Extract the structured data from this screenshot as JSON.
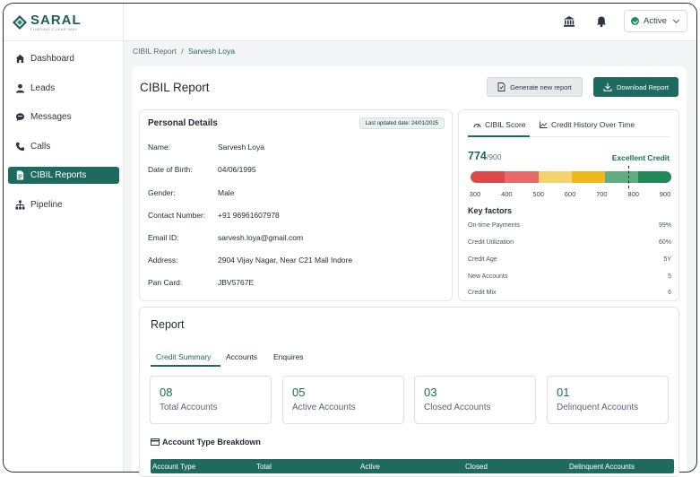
{
  "brand": {
    "name": "SARAL",
    "tagline": "FUNDING CLEAR WAY"
  },
  "sidebar": {
    "items": [
      {
        "label": "Dashboard",
        "icon": "home-icon"
      },
      {
        "label": "Leads",
        "icon": "user-icon"
      },
      {
        "label": "Messages",
        "icon": "chat-icon"
      },
      {
        "label": "Calls",
        "icon": "phone-icon"
      },
      {
        "label": "CIBIL Reports",
        "icon": "document-icon",
        "active": true
      },
      {
        "label": "Pipeline",
        "icon": "hierarchy-icon"
      }
    ]
  },
  "topbar": {
    "status": "Active"
  },
  "breadcrumb": {
    "root": "CIBIL Report",
    "separator": "/",
    "current": "Sarvesh Loya"
  },
  "page": {
    "title": "CIBIL Report",
    "generate_label": "Generate new report",
    "download_label": "Download Report"
  },
  "personal": {
    "title": "Personal Details",
    "updated": "Last updated date: 24/01/2025",
    "fields": [
      {
        "label": "Name:",
        "value": "Sarvesh Loya"
      },
      {
        "label": "Date of Birth:",
        "value": "04/06/1995"
      },
      {
        "label": "Gender:",
        "value": "Male"
      },
      {
        "label": "Contact Number:",
        "value": "+91 96961607978"
      },
      {
        "label": "Email ID:",
        "value": "sarvesh.loya@gmail.com"
      },
      {
        "label": "Address:",
        "value": "2904 Vijay Nagar, Near C21 Mall Indore"
      },
      {
        "label": "Pan Card:",
        "value": "JBV5767E"
      }
    ]
  },
  "score": {
    "tab_score": "CIBIL Score",
    "tab_history": "Credit History Over Time",
    "value": "774",
    "max": "/900",
    "rating": "Excellent Credit",
    "score_number": 774,
    "scale_min": 300,
    "scale_max": 900,
    "ticks": [
      "300",
      "400",
      "500",
      "600",
      "700",
      "800",
      "900"
    ],
    "segment_colors": [
      "#e04848",
      "#e9686a",
      "#f5d36c",
      "#f1b81e",
      "#5fae82",
      "#1f8a58"
    ],
    "key_factors_title": "Key factors",
    "key_factors": [
      {
        "label": "On-time Payments",
        "value": "99%"
      },
      {
        "label": "Credit Utilization",
        "value": "60%"
      },
      {
        "label": "Credit Age",
        "value": "5Y"
      },
      {
        "label": "New Accounts",
        "value": "5"
      },
      {
        "label": "Credit Mix",
        "value": "6"
      }
    ]
  },
  "report": {
    "title": "Report",
    "tabs": [
      "Credit Summary",
      "Accounts",
      "Enquires"
    ],
    "stats": [
      {
        "value": "08",
        "label": "Total Accounts"
      },
      {
        "value": "05",
        "label": "Active Accounts"
      },
      {
        "value": "03",
        "label": "Closed Accounts"
      },
      {
        "value": "01",
        "label": "Delinquent Accounts"
      }
    ],
    "breakdown_title": "Account Type Breakdown",
    "columns": [
      "Account Type",
      "Total",
      "Active",
      "Closed",
      "Delinquent Accounts"
    ]
  },
  "colors": {
    "brand": "#1e6a5e"
  }
}
